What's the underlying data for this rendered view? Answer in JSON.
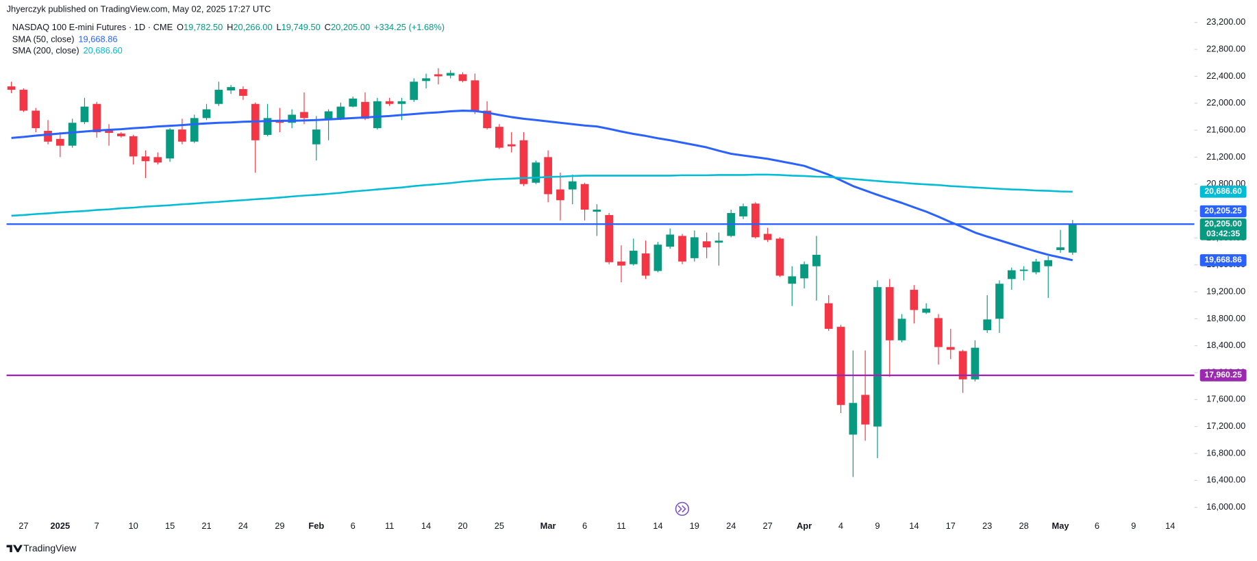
{
  "header": {
    "published": "Jhyerczyk published on TradingView.com, May 02, 2025 17:27 UTC"
  },
  "footer": {
    "brand": "TradingView"
  },
  "chart_data": {
    "type": "candlestick",
    "title": "NASDAQ 100 E-mini Futures · 1D · CME",
    "categories": [
      null,
      "27",
      null,
      null,
      "2025",
      null,
      null,
      "7",
      null,
      null,
      "10",
      null,
      null,
      "15",
      null,
      null,
      "21",
      null,
      null,
      "24",
      null,
      null,
      "29",
      null,
      null,
      "Feb",
      null,
      null,
      "6",
      null,
      null,
      "11",
      null,
      null,
      "14",
      null,
      null,
      "20",
      null,
      null,
      "25",
      null,
      null,
      null,
      "Mar",
      null,
      null,
      "6",
      null,
      null,
      "11",
      null,
      null,
      "14",
      null,
      null,
      "19",
      null,
      null,
      "24",
      null,
      null,
      "27",
      null,
      null,
      "Apr",
      null,
      null,
      "4",
      null,
      null,
      "9",
      null,
      null,
      "14",
      null,
      null,
      "17",
      null,
      null,
      "23",
      null,
      null,
      "28",
      null,
      null,
      "May",
      null,
      null,
      "6",
      null,
      null,
      "9",
      null,
      null,
      "14"
    ],
    "series": [
      {
        "name": "NASDAQ 100 E-mini Futures",
        "up_color": "#089981",
        "down_color": "#f23645",
        "open": [
          22250,
          22200,
          21890,
          21590,
          21470,
          21370,
          21720,
          21990,
          21610,
          21550,
          21510,
          21210,
          21200,
          21180,
          21610,
          21430,
          21780,
          21990,
          22190,
          22210,
          21990,
          21530,
          21750,
          21710,
          21870,
          21390,
          21750,
          21760,
          21950,
          22020,
          21630,
          22030,
          21990,
          22050,
          22330,
          22430,
          22410,
          22430,
          22340,
          21890,
          21650,
          21390,
          21450,
          20820,
          21200,
          20720,
          20720,
          20800,
          20390,
          20340,
          19650,
          19610,
          19770,
          19510,
          19870,
          20030,
          19700,
          19950,
          19930,
          20030,
          20320,
          20510,
          20060,
          19990,
          19320,
          19400,
          19580,
          19030,
          18680,
          17080,
          17670,
          17200,
          19270,
          18480,
          19230,
          18890,
          18810,
          18380,
          18320,
          17900,
          18630,
          18800,
          19390,
          19510,
          19490,
          19580,
          19820,
          19782.5,
          null,
          null,
          null,
          null,
          null,
          null,
          null,
          null
        ],
        "high": [
          22320,
          22220,
          21930,
          21750,
          21570,
          21770,
          22080,
          22020,
          21690,
          21570,
          21530,
          21300,
          21270,
          21630,
          21770,
          21830,
          21990,
          22320,
          22270,
          22250,
          22010,
          21990,
          21930,
          21910,
          22160,
          21810,
          21910,
          22010,
          22100,
          22160,
          22080,
          22080,
          22080,
          22370,
          22440,
          22520,
          22490,
          22460,
          22440,
          22030,
          21690,
          21570,
          21570,
          21150,
          21300,
          20970,
          20940,
          20820,
          20500,
          20370,
          19890,
          19990,
          19960,
          19940,
          20140,
          20060,
          20110,
          20080,
          20080,
          20420,
          20510,
          20530,
          20150,
          20010,
          19580,
          19650,
          20030,
          19150,
          18710,
          18330,
          18330,
          19370,
          19390,
          18870,
          19300,
          19030,
          18870,
          18650,
          18340,
          18480,
          19150,
          19370,
          19560,
          19580,
          19690,
          19730,
          20120,
          20266,
          null,
          null,
          null,
          null,
          null,
          null,
          null,
          null
        ],
        "low": [
          22150,
          21870,
          21570,
          21390,
          21200,
          21340,
          21690,
          21490,
          21370,
          21490,
          21090,
          20890,
          21090,
          21130,
          21390,
          21410,
          21750,
          21960,
          22140,
          22050,
          20970,
          21510,
          21570,
          21630,
          21690,
          21150,
          21450,
          21750,
          21940,
          21750,
          21610,
          21960,
          21750,
          22020,
          22220,
          22280,
          22370,
          22310,
          21840,
          21610,
          21320,
          21270,
          20770,
          20800,
          20530,
          20260,
          20500,
          20260,
          20030,
          19610,
          19340,
          19590,
          19390,
          19490,
          19840,
          19610,
          19650,
          19700,
          19590,
          20010,
          20280,
          19990,
          19940,
          19420,
          18990,
          19250,
          19070,
          18620,
          17400,
          16450,
          16990,
          16730,
          17940,
          18450,
          18730,
          18870,
          18120,
          18200,
          17700,
          17870,
          18590,
          18590,
          19230,
          19370,
          19460,
          19110,
          19780,
          19749.5,
          null,
          null,
          null,
          null,
          null,
          null,
          null,
          null
        ],
        "close": [
          22200,
          21890,
          21630,
          21430,
          21370,
          21710,
          21950,
          21570,
          21560,
          21510,
          21210,
          21140,
          21120,
          21610,
          21430,
          21780,
          21910,
          22200,
          22240,
          22110,
          21450,
          21780,
          21710,
          21830,
          21780,
          21610,
          21880,
          21950,
          22070,
          21770,
          22030,
          21990,
          22030,
          22320,
          22370,
          22400,
          22450,
          22330,
          21870,
          21630,
          21340,
          21360,
          20800,
          21120,
          20650,
          20560,
          20840,
          20420,
          20420,
          19640,
          19590,
          19810,
          19440,
          19900,
          20050,
          19650,
          20010,
          19860,
          19960,
          20370,
          20470,
          20010,
          19970,
          19440,
          19430,
          19610,
          19750,
          18650,
          17520,
          17550,
          17230,
          19270,
          18480,
          18800,
          18930,
          18950,
          18380,
          18340,
          17900,
          18370,
          18790,
          19320,
          19520,
          19530,
          19650,
          19670,
          19860,
          20205,
          null,
          null,
          null,
          null,
          null,
          null,
          null,
          null
        ]
      }
    ],
    "indicators": [
      {
        "name": "SMA (50, close)",
        "color": "#2962ff",
        "last_label": "19,668.86",
        "values": [
          21485,
          21500,
          21520,
          21535,
          21550,
          21565,
          21580,
          21595,
          21605,
          21615,
          21630,
          21640,
          21655,
          21665,
          21675,
          21690,
          21700,
          21710,
          21715,
          21725,
          21730,
          21735,
          21740,
          21740,
          21745,
          21750,
          21760,
          21770,
          21780,
          21790,
          21800,
          21810,
          21825,
          21840,
          21855,
          21865,
          21880,
          21890,
          21885,
          21860,
          21825,
          21795,
          21770,
          21750,
          21730,
          21710,
          21690,
          21670,
          21655,
          21620,
          21580,
          21545,
          21515,
          21480,
          21450,
          21415,
          21380,
          21345,
          21295,
          21250,
          21225,
          21200,
          21175,
          21140,
          21105,
          21070,
          21005,
          20940,
          20855,
          20770,
          20705,
          20640,
          20580,
          20520,
          20455,
          20390,
          20315,
          20235,
          20160,
          20080,
          20020,
          19965,
          19910,
          19855,
          19800,
          19750,
          19710,
          19668.86,
          null,
          null,
          null,
          null,
          null,
          null,
          null,
          null
        ]
      },
      {
        "name": "SMA (200, close)",
        "color": "#00bcd4",
        "last_label": "20,686.60",
        "values": [
          20330,
          20340,
          20355,
          20365,
          20380,
          20390,
          20400,
          20415,
          20425,
          20440,
          20450,
          20465,
          20475,
          20485,
          20500,
          20510,
          20525,
          20535,
          20550,
          20560,
          20575,
          20585,
          20600,
          20615,
          20630,
          20640,
          20655,
          20670,
          20690,
          20705,
          20720,
          20735,
          20750,
          20770,
          20785,
          20800,
          20815,
          20835,
          20850,
          20865,
          20875,
          20880,
          20890,
          20895,
          20905,
          20910,
          20920,
          20925,
          20925,
          20925,
          20925,
          20925,
          20925,
          20925,
          20925,
          20930,
          20930,
          20930,
          20935,
          20935,
          20935,
          20940,
          20940,
          20935,
          20925,
          20920,
          20910,
          20905,
          20890,
          20875,
          20860,
          20845,
          20830,
          20820,
          20805,
          20795,
          20785,
          20770,
          20760,
          20750,
          20740,
          20730,
          20720,
          20715,
          20705,
          20700,
          20690,
          20686.6,
          null,
          null,
          null,
          null,
          null,
          null,
          null,
          null
        ]
      }
    ],
    "hlines": [
      {
        "value": 20205.25,
        "label": "20,205.25",
        "color": "#2962ff"
      },
      {
        "value": 17960.25,
        "label": "17,960.25",
        "color": "#9c27b0"
      }
    ],
    "last_price": {
      "value": 20205,
      "label": "20,205.00",
      "countdown": "03:42:35"
    },
    "legend": [
      {
        "key": "O",
        "value": 19782.5,
        "label": "19,782.50"
      },
      {
        "key": "H",
        "value": 20266,
        "label": "20,266.00"
      },
      {
        "key": "L",
        "value": 19749.5,
        "label": "19,749.50"
      },
      {
        "key": "C",
        "value": 20205,
        "label": "20,205.00"
      }
    ],
    "change_label": "+334.25 (+1.68%)",
    "ylim": [
      15584,
      23533
    ],
    "yticks": [
      {
        "value": 16000,
        "label": "16,000.00"
      },
      {
        "value": 16400,
        "label": "16,400.00"
      },
      {
        "value": 16800,
        "label": "16,800.00"
      },
      {
        "value": 17200,
        "label": "17,200.00"
      },
      {
        "value": 17600,
        "label": "17,600.00"
      },
      {
        "value": 18000,
        "label": "18,000.00"
      },
      {
        "value": 18400,
        "label": "18,400.00"
      },
      {
        "value": 18800,
        "label": "18,800.00"
      },
      {
        "value": 19200,
        "label": "19,200.00"
      },
      {
        "value": 19600,
        "label": "19,600.00"
      },
      {
        "value": 20000,
        "label": "20,000.00"
      },
      {
        "value": 20400,
        "label": "20,400.00"
      },
      {
        "value": 20800,
        "label": "20,800.00"
      },
      {
        "value": 21200,
        "label": "21,200.00"
      },
      {
        "value": 21600,
        "label": "21,600.00"
      },
      {
        "value": 22000,
        "label": "22,000.00"
      },
      {
        "value": 22400,
        "label": "22,400.00"
      },
      {
        "value": 22800,
        "label": "22,800.00"
      },
      {
        "value": 23200,
        "label": "23,200.00"
      }
    ],
    "grid": false
  }
}
